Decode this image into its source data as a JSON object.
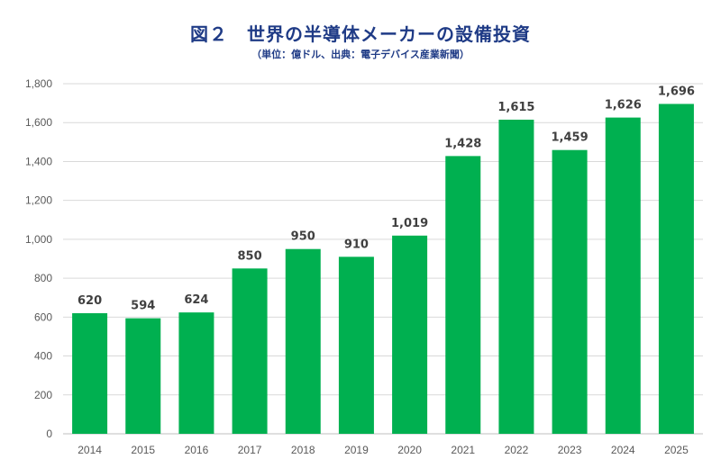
{
  "chart_data": {
    "type": "bar",
    "title": "図２　世界の半導体メーカーの設備投資",
    "subtitle": "（単位：億ドル、出典：電子デバイス産業新聞）",
    "xlabel": "",
    "ylabel": "",
    "categories": [
      "2014",
      "2015",
      "2016",
      "2017",
      "2018",
      "2019",
      "2020",
      "2021",
      "2022",
      "2023",
      "2024",
      "2025"
    ],
    "values": [
      620,
      594,
      624,
      850,
      950,
      910,
      1019,
      1428,
      1615,
      1459,
      1626,
      1696
    ],
    "value_labels": [
      "620",
      "594",
      "624",
      "850",
      "950",
      "910",
      "1,019",
      "1,428",
      "1,615",
      "1,459",
      "1,626",
      "1,696"
    ],
    "ylim": [
      0,
      1800
    ],
    "yticks": [
      0,
      200,
      400,
      600,
      800,
      1000,
      1200,
      1400,
      1600,
      1800
    ],
    "ytick_labels": [
      "0",
      "200",
      "400",
      "600",
      "800",
      "1,000",
      "1,200",
      "1,400",
      "1,600",
      "1,800"
    ],
    "grid": true,
    "legend": "none",
    "bar_color": "#00b050"
  }
}
